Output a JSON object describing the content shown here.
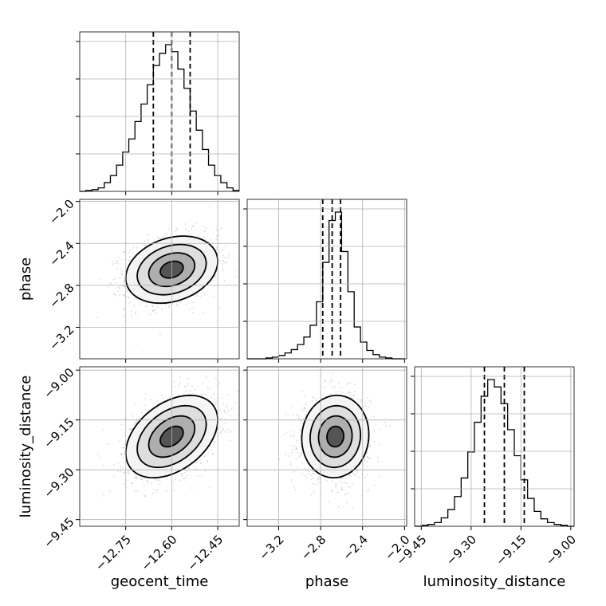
{
  "chart_data": {
    "type": "corner",
    "parameters": [
      "geocent_time",
      "phase",
      "luminosity_distance"
    ],
    "axis_labels": {
      "x": [
        "geocent_time",
        "phase",
        "luminosity_distance"
      ],
      "y": [
        "",
        "phase",
        "luminosity_distance"
      ]
    },
    "ranges": {
      "geocent_time": [
        -12.9,
        -12.38
      ],
      "phase": [
        -3.5,
        -1.98
      ],
      "luminosity_distance": [
        -9.47,
        -8.99
      ]
    },
    "ticks": {
      "geocent_time": [
        -12.75,
        -12.6,
        -12.45
      ],
      "phase": [
        -3.2,
        -2.8,
        -2.4,
        -2.0
      ],
      "luminosity_distance": [
        -9.45,
        -9.3,
        -9.15,
        -9.0
      ]
    },
    "tick_labels": {
      "geocent_time": [
        "−12.75",
        "−12.60",
        "−12.45"
      ],
      "phase": [
        "−3.2",
        "−2.8",
        "−2.4",
        "−2.0"
      ],
      "luminosity_distance": [
        "−9.45",
        "−9.30",
        "−9.15",
        "−9.00"
      ]
    },
    "phase_row_tick_labels": [
      "−2.0",
      "−2.4",
      "−2.8",
      "−3.2"
    ],
    "histograms": {
      "geocent_time": {
        "bin_edges": [
          -12.9,
          -12.88,
          -12.86,
          -12.84,
          -12.82,
          -12.8,
          -12.78,
          -12.76,
          -12.74,
          -12.72,
          -12.7,
          -12.68,
          -12.66,
          -12.64,
          -12.62,
          -12.6,
          -12.58,
          -12.56,
          -12.54,
          -12.52,
          -12.5,
          -12.48,
          -12.46,
          -12.44,
          -12.42,
          -12.4,
          -12.38
        ],
        "counts": [
          0,
          1,
          2,
          4,
          10,
          18,
          30,
          45,
          60,
          80,
          100,
          122,
          144,
          158,
          168,
          160,
          140,
          118,
          92,
          70,
          48,
          30,
          18,
          10,
          4,
          1
        ],
        "quantiles": [
          -12.66,
          -12.6,
          -12.54
        ]
      },
      "phase": {
        "bin_edges": [
          -3.5,
          -3.44,
          -3.38,
          -3.32,
          -3.26,
          -3.2,
          -3.14,
          -3.08,
          -3.02,
          -2.96,
          -2.9,
          -2.84,
          -2.78,
          -2.72,
          -2.66,
          -2.6,
          -2.54,
          -2.48,
          -2.42,
          -2.36,
          -2.3,
          -2.24,
          -2.18,
          -2.12,
          -2.06,
          -2.0
        ],
        "counts": [
          0,
          0,
          0,
          1,
          2,
          4,
          7,
          11,
          17,
          26,
          40,
          68,
          115,
          165,
          175,
          128,
          80,
          38,
          20,
          10,
          5,
          2,
          1,
          0,
          0
        ],
        "quantiles": [
          -2.78,
          -2.69,
          -2.61
        ]
      },
      "luminosity_distance": {
        "bin_edges": [
          -9.47,
          -9.45,
          -9.43,
          -9.41,
          -9.39,
          -9.37,
          -9.35,
          -9.33,
          -9.31,
          -9.29,
          -9.27,
          -9.25,
          -9.23,
          -9.21,
          -9.19,
          -9.17,
          -9.15,
          -9.13,
          -9.11,
          -9.09,
          -9.07,
          -9.05,
          -9.03,
          -9.01,
          -8.99
        ],
        "counts": [
          0,
          1,
          2,
          4,
          9,
          18,
          32,
          52,
          80,
          112,
          140,
          158,
          150,
          132,
          104,
          76,
          50,
          30,
          16,
          8,
          4,
          2,
          1,
          0
        ],
        "quantiles": [
          -9.26,
          -9.2,
          -9.14
        ]
      }
    },
    "joint": [
      {
        "x": "geocent_time",
        "y": "phase",
        "mean": [
          -12.6,
          -2.65
        ],
        "sd": [
          0.075,
          0.16
        ],
        "corr": 0.25
      },
      {
        "x": "geocent_time",
        "y": "luminosity_distance",
        "mean": [
          -12.6,
          -9.2
        ],
        "sd": [
          0.075,
          0.062
        ],
        "corr": 0.4
      },
      {
        "x": "phase",
        "y": "luminosity_distance",
        "mean": [
          -2.66,
          -9.2
        ],
        "sd": [
          0.16,
          0.062
        ],
        "corr": 0.05
      }
    ],
    "contour_levels_sigma": [
      0.5,
      1.0,
      1.5,
      2.0
    ],
    "grid": true,
    "colors": {
      "line": "#000000",
      "grid": "#b0b0b0",
      "points": "#555555"
    }
  }
}
